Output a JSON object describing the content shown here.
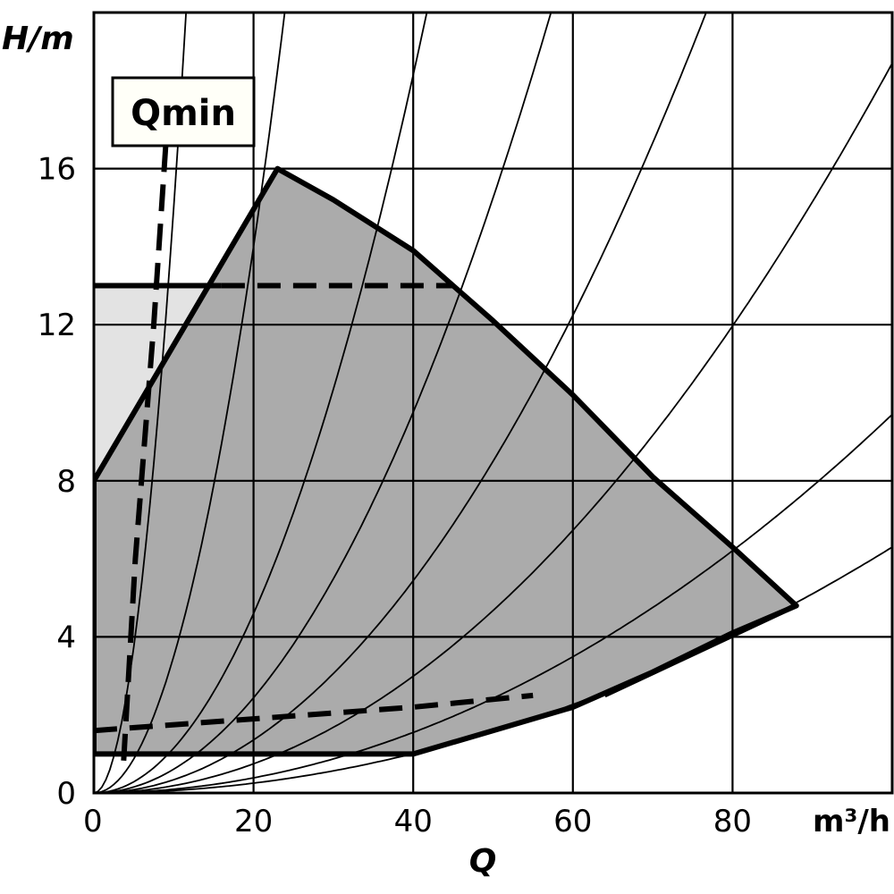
{
  "chart_data": {
    "type": "area",
    "title": "",
    "xlabel": "Q",
    "ylabel": "H/m",
    "x_unit": "m³/h",
    "xlim": [
      0,
      100
    ],
    "ylim": [
      0,
      20
    ],
    "x_ticks": [
      0,
      20,
      40,
      60,
      80
    ],
    "y_ticks": [
      0,
      4,
      8,
      12,
      16
    ],
    "grid": true,
    "annotations": [
      "Qmin"
    ],
    "colors": {
      "operating_field": "#ababab",
      "light_field": "#e3e3e3",
      "lines": "#000000",
      "label_box": "#fffff8"
    },
    "series": [
      {
        "role": "operating-field-outline",
        "points": [
          [
            0,
            8
          ],
          [
            23,
            16
          ],
          [
            30,
            15.2
          ],
          [
            40,
            13.9
          ],
          [
            50,
            12.1
          ],
          [
            60,
            10.2
          ],
          [
            70,
            8.1
          ],
          [
            80,
            6.3
          ],
          [
            88,
            4.8
          ],
          [
            80,
            4.1
          ],
          [
            70,
            3.1
          ],
          [
            60,
            2.2
          ],
          [
            50,
            1.6
          ],
          [
            40,
            1
          ],
          [
            0,
            1
          ]
        ]
      },
      {
        "role": "upper-limit-line",
        "points": [
          [
            0,
            13
          ],
          [
            45,
            13
          ]
        ],
        "dashed_from_x": 16
      },
      {
        "role": "lower-dashed-curve",
        "points": [
          [
            0,
            1.6
          ],
          [
            20,
            1.9
          ],
          [
            40,
            2.2
          ],
          [
            55,
            2.5
          ],
          [
            64,
            2.5
          ],
          [
            88,
            4.8
          ]
        ],
        "dashed_until_x": 60
      },
      {
        "role": "qmin-line",
        "points": [
          [
            9,
            16.6
          ],
          [
            7.5,
            12
          ],
          [
            5.2,
            6
          ],
          [
            3.7,
            0.7
          ]
        ]
      },
      {
        "role": "system-curves",
        "coefficients": [
          0.15,
          0.035,
          0.0115,
          0.0061,
          0.0034,
          0.00187,
          0.00097,
          0.00063
        ]
      }
    ]
  }
}
